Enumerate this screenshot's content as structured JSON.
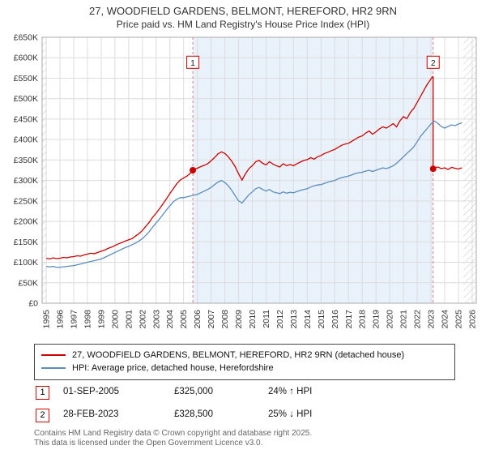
{
  "title": "27, WOODFIELD GARDENS, BELMONT, HEREFORD, HR2 9RN",
  "subtitle": "Price paid vs. HM Land Registry's House Price Index (HPI)",
  "chart_data": {
    "type": "line",
    "y_unit": "GBP thousands",
    "x_range": [
      1994.7,
      2026.3
    ],
    "y_range": [
      0,
      650
    ],
    "y_tick_step": 50,
    "y_tick_labels": [
      "£0",
      "£50K",
      "£100K",
      "£150K",
      "£200K",
      "£250K",
      "£300K",
      "£350K",
      "£400K",
      "£450K",
      "£500K",
      "£550K",
      "£600K",
      "£650K"
    ],
    "x_ticks": [
      1995,
      1996,
      1997,
      1998,
      1999,
      2000,
      2001,
      2002,
      2003,
      2004,
      2005,
      2006,
      2007,
      2008,
      2009,
      2010,
      2011,
      2012,
      2013,
      2014,
      2015,
      2016,
      2017,
      2018,
      2019,
      2020,
      2021,
      2022,
      2023,
      2024,
      2025,
      2026
    ],
    "grid": true,
    "legend_position": "bottom",
    "shaded_region": [
      2005.67,
      2023.16
    ],
    "hatched_regions": [
      [
        1994.7,
        1995.02
      ],
      [
        2025.35,
        2026.3
      ]
    ],
    "colors": {
      "price": "#cc0000",
      "hpi": "#5b8cbe",
      "shade": "#e9f1fa",
      "grid": "#dcdcdc",
      "border": "#aaaaaa",
      "sale_line": "#e07a7a",
      "hatch": "#c4c4c4",
      "accent": "#cc0000"
    },
    "markers": [
      {
        "label": "1",
        "x": 2005.67,
        "y": 325
      },
      {
        "label": "2",
        "x": 2023.16,
        "y": 328.5
      }
    ],
    "series": [
      {
        "name": "27, WOODFIELD GARDENS, BELMONT, HEREFORD, HR2 9RN (detached house)",
        "color": "#cc0000",
        "points": [
          [
            1995,
            110
          ],
          [
            1995.25,
            108
          ],
          [
            1995.5,
            111
          ],
          [
            1995.75,
            109
          ],
          [
            1996,
            110
          ],
          [
            1996.25,
            112
          ],
          [
            1996.5,
            111
          ],
          [
            1996.75,
            113
          ],
          [
            1997,
            114
          ],
          [
            1997.25,
            116
          ],
          [
            1997.5,
            115
          ],
          [
            1997.75,
            118
          ],
          [
            1998,
            120
          ],
          [
            1998.25,
            122
          ],
          [
            1998.5,
            121
          ],
          [
            1998.75,
            124
          ],
          [
            1999,
            127
          ],
          [
            1999.25,
            130
          ],
          [
            1999.5,
            134
          ],
          [
            1999.75,
            137
          ],
          [
            2000,
            141
          ],
          [
            2000.25,
            145
          ],
          [
            2000.5,
            148
          ],
          [
            2000.75,
            152
          ],
          [
            2001,
            155
          ],
          [
            2001.25,
            158
          ],
          [
            2001.5,
            164
          ],
          [
            2001.75,
            170
          ],
          [
            2002,
            178
          ],
          [
            2002.25,
            188
          ],
          [
            2002.5,
            198
          ],
          [
            2002.75,
            210
          ],
          [
            2003,
            220
          ],
          [
            2003.25,
            231
          ],
          [
            2003.5,
            243
          ],
          [
            2003.75,
            255
          ],
          [
            2004,
            268
          ],
          [
            2004.25,
            280
          ],
          [
            2004.5,
            292
          ],
          [
            2004.75,
            301
          ],
          [
            2005,
            306
          ],
          [
            2005.25,
            311
          ],
          [
            2005.5,
            318
          ],
          [
            2005.67,
            325
          ],
          [
            2005.75,
            327
          ],
          [
            2006,
            330
          ],
          [
            2006.25,
            334
          ],
          [
            2006.5,
            337
          ],
          [
            2006.75,
            341
          ],
          [
            2007,
            348
          ],
          [
            2007.25,
            356
          ],
          [
            2007.5,
            365
          ],
          [
            2007.75,
            370
          ],
          [
            2008,
            366
          ],
          [
            2008.25,
            358
          ],
          [
            2008.5,
            347
          ],
          [
            2008.75,
            334
          ],
          [
            2009,
            316
          ],
          [
            2009.25,
            301
          ],
          [
            2009.5,
            316
          ],
          [
            2009.75,
            329
          ],
          [
            2010,
            336
          ],
          [
            2010.25,
            346
          ],
          [
            2010.5,
            349
          ],
          [
            2010.75,
            342
          ],
          [
            2011,
            338
          ],
          [
            2011.25,
            346
          ],
          [
            2011.5,
            340
          ],
          [
            2011.75,
            336
          ],
          [
            2012,
            333
          ],
          [
            2012.25,
            341
          ],
          [
            2012.5,
            336
          ],
          [
            2012.75,
            339
          ],
          [
            2013,
            336
          ],
          [
            2013.25,
            341
          ],
          [
            2013.5,
            345
          ],
          [
            2013.75,
            349
          ],
          [
            2014,
            351
          ],
          [
            2014.25,
            356
          ],
          [
            2014.5,
            352
          ],
          [
            2014.75,
            358
          ],
          [
            2015,
            361
          ],
          [
            2015.25,
            366
          ],
          [
            2015.5,
            369
          ],
          [
            2015.75,
            373
          ],
          [
            2016,
            376
          ],
          [
            2016.25,
            381
          ],
          [
            2016.5,
            386
          ],
          [
            2016.75,
            389
          ],
          [
            2017,
            391
          ],
          [
            2017.25,
            396
          ],
          [
            2017.5,
            401
          ],
          [
            2017.75,
            406
          ],
          [
            2018,
            409
          ],
          [
            2018.25,
            416
          ],
          [
            2018.5,
            421
          ],
          [
            2018.75,
            413
          ],
          [
            2019,
            419
          ],
          [
            2019.25,
            426
          ],
          [
            2019.5,
            431
          ],
          [
            2019.75,
            428
          ],
          [
            2020,
            433
          ],
          [
            2020.25,
            439
          ],
          [
            2020.5,
            431
          ],
          [
            2020.75,
            446
          ],
          [
            2021,
            456
          ],
          [
            2021.25,
            451
          ],
          [
            2021.5,
            466
          ],
          [
            2021.75,
            476
          ],
          [
            2022,
            491
          ],
          [
            2022.25,
            506
          ],
          [
            2022.5,
            521
          ],
          [
            2022.75,
            536
          ],
          [
            2023,
            548
          ],
          [
            2023.1,
            553
          ],
          [
            2023.16,
            553
          ],
          [
            2023.16,
            328.5
          ],
          [
            2023.25,
            331
          ],
          [
            2023.5,
            333
          ],
          [
            2023.75,
            329
          ],
          [
            2024,
            331
          ],
          [
            2024.25,
            327
          ],
          [
            2024.5,
            332
          ],
          [
            2024.75,
            330
          ],
          [
            2025,
            328
          ],
          [
            2025.25,
            331
          ]
        ]
      },
      {
        "name": "HPI: Average price, detached house, Herefordshire",
        "color": "#5b8cbe",
        "points": [
          [
            1995,
            90
          ],
          [
            1995.25,
            89
          ],
          [
            1995.5,
            90
          ],
          [
            1995.75,
            88
          ],
          [
            1996,
            88
          ],
          [
            1996.25,
            89
          ],
          [
            1996.5,
            90
          ],
          [
            1996.75,
            91
          ],
          [
            1997,
            92
          ],
          [
            1997.25,
            94
          ],
          [
            1997.5,
            96
          ],
          [
            1997.75,
            98
          ],
          [
            1998,
            100
          ],
          [
            1998.25,
            102
          ],
          [
            1998.5,
            104
          ],
          [
            1998.75,
            106
          ],
          [
            1999,
            108
          ],
          [
            1999.25,
            112
          ],
          [
            1999.5,
            116
          ],
          [
            1999.75,
            120
          ],
          [
            2000,
            124
          ],
          [
            2000.25,
            128
          ],
          [
            2000.5,
            132
          ],
          [
            2000.75,
            136
          ],
          [
            2001,
            139
          ],
          [
            2001.25,
            143
          ],
          [
            2001.5,
            147
          ],
          [
            2001.75,
            152
          ],
          [
            2002,
            158
          ],
          [
            2002.25,
            166
          ],
          [
            2002.5,
            175
          ],
          [
            2002.75,
            186
          ],
          [
            2003,
            196
          ],
          [
            2003.25,
            206
          ],
          [
            2003.5,
            217
          ],
          [
            2003.75,
            228
          ],
          [
            2004,
            238
          ],
          [
            2004.25,
            248
          ],
          [
            2004.5,
            254
          ],
          [
            2004.75,
            258
          ],
          [
            2005,
            258
          ],
          [
            2005.25,
            260
          ],
          [
            2005.5,
            262
          ],
          [
            2005.75,
            264
          ],
          [
            2006,
            266
          ],
          [
            2006.25,
            270
          ],
          [
            2006.5,
            274
          ],
          [
            2006.75,
            278
          ],
          [
            2007,
            283
          ],
          [
            2007.25,
            290
          ],
          [
            2007.5,
            296
          ],
          [
            2007.75,
            300
          ],
          [
            2008,
            295
          ],
          [
            2008.25,
            287
          ],
          [
            2008.5,
            276
          ],
          [
            2008.75,
            263
          ],
          [
            2009,
            250
          ],
          [
            2009.25,
            245
          ],
          [
            2009.5,
            255
          ],
          [
            2009.75,
            265
          ],
          [
            2010,
            272
          ],
          [
            2010.25,
            280
          ],
          [
            2010.5,
            283
          ],
          [
            2010.75,
            278
          ],
          [
            2011,
            274
          ],
          [
            2011.25,
            278
          ],
          [
            2011.5,
            272
          ],
          [
            2011.75,
            270
          ],
          [
            2012,
            268
          ],
          [
            2012.25,
            272
          ],
          [
            2012.5,
            269
          ],
          [
            2012.75,
            271
          ],
          [
            2013,
            270
          ],
          [
            2013.25,
            273
          ],
          [
            2013.5,
            276
          ],
          [
            2013.75,
            278
          ],
          [
            2014,
            280
          ],
          [
            2014.25,
            284
          ],
          [
            2014.5,
            287
          ],
          [
            2014.75,
            289
          ],
          [
            2015,
            290
          ],
          [
            2015.25,
            293
          ],
          [
            2015.5,
            296
          ],
          [
            2015.75,
            298
          ],
          [
            2016,
            300
          ],
          [
            2016.25,
            304
          ],
          [
            2016.5,
            307
          ],
          [
            2016.75,
            309
          ],
          [
            2017,
            311
          ],
          [
            2017.25,
            314
          ],
          [
            2017.5,
            317
          ],
          [
            2017.75,
            319
          ],
          [
            2018,
            320
          ],
          [
            2018.25,
            323
          ],
          [
            2018.5,
            325
          ],
          [
            2018.75,
            322
          ],
          [
            2019,
            325
          ],
          [
            2019.25,
            328
          ],
          [
            2019.5,
            331
          ],
          [
            2019.75,
            329
          ],
          [
            2020,
            332
          ],
          [
            2020.25,
            336
          ],
          [
            2020.5,
            342
          ],
          [
            2020.75,
            350
          ],
          [
            2021,
            358
          ],
          [
            2021.25,
            366
          ],
          [
            2021.5,
            374
          ],
          [
            2021.75,
            382
          ],
          [
            2022,
            395
          ],
          [
            2022.25,
            408
          ],
          [
            2022.5,
            418
          ],
          [
            2022.75,
            428
          ],
          [
            2023,
            438
          ],
          [
            2023.25,
            445
          ],
          [
            2023.5,
            440
          ],
          [
            2023.75,
            432
          ],
          [
            2024,
            428
          ],
          [
            2024.25,
            432
          ],
          [
            2024.5,
            436
          ],
          [
            2024.75,
            434
          ],
          [
            2025,
            438
          ],
          [
            2025.25,
            441
          ]
        ]
      }
    ]
  },
  "legend": [
    {
      "label": "27, WOODFIELD GARDENS, BELMONT, HEREFORD, HR2 9RN (detached house)"
    },
    {
      "label": "HPI: Average price, detached house, Herefordshire"
    }
  ],
  "sales": [
    {
      "num": "1",
      "date": "01-SEP-2005",
      "price": "£325,000",
      "hpi": "24% ↑ HPI"
    },
    {
      "num": "2",
      "date": "28-FEB-2023",
      "price": "£328,500",
      "hpi": "25% ↓ HPI"
    }
  ],
  "footer": {
    "line1": "Contains HM Land Registry data © Crown copyright and database right 2025.",
    "line2": "This data is licensed under the Open Government Licence v3.0."
  }
}
